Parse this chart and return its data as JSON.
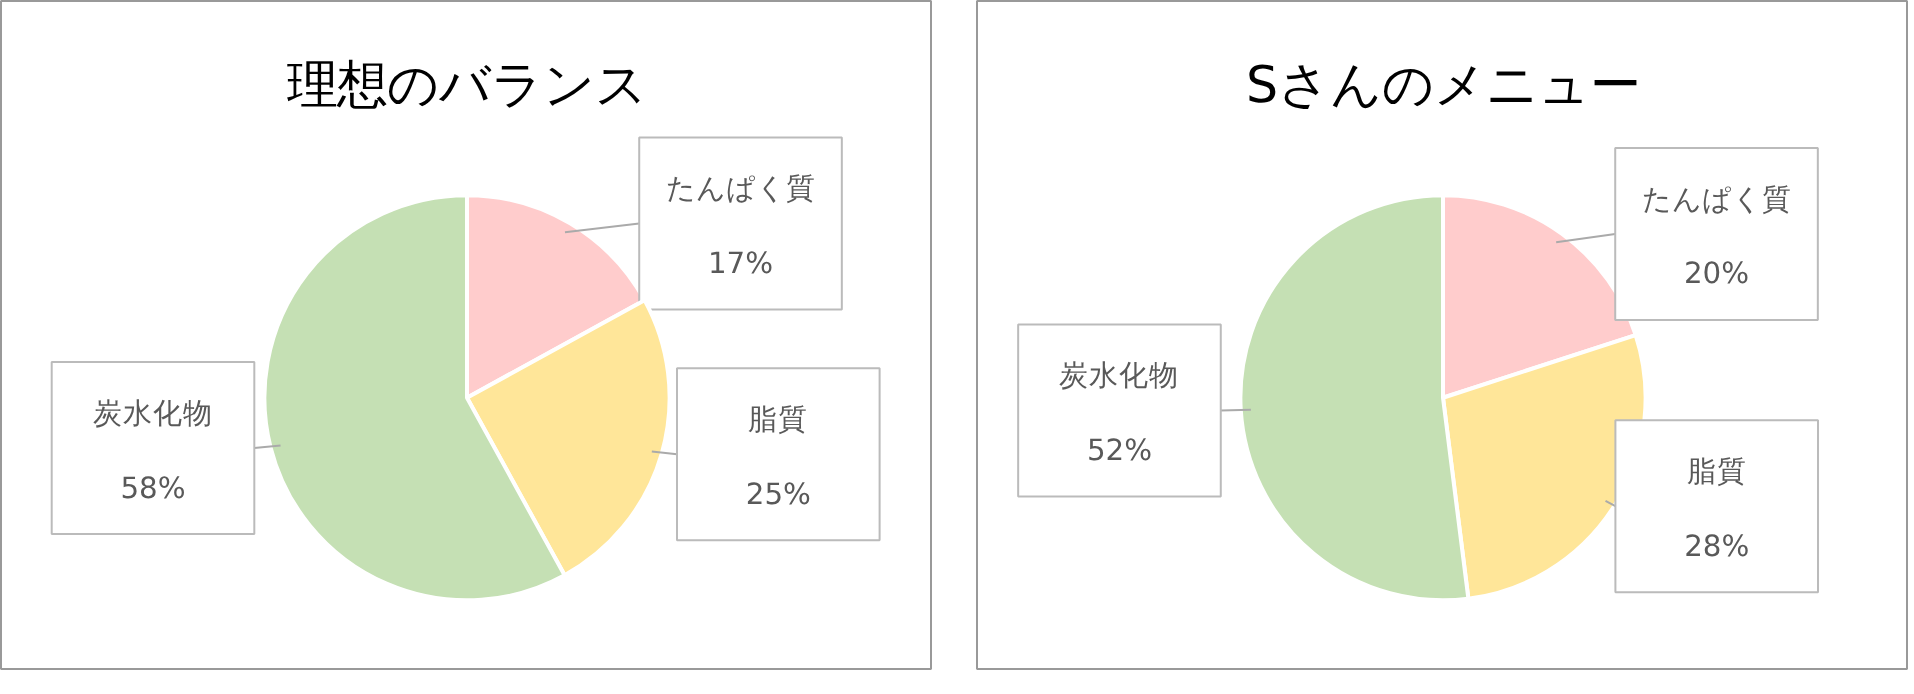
{
  "chart_data": [
    {
      "type": "pie",
      "title": "理想のバランス",
      "categories": [
        "たんぱく質",
        "脂質",
        "炭水化物"
      ],
      "values": [
        17,
        25,
        58
      ],
      "colors": [
        "#ffcccc",
        "#ffe699",
        "#c5e0b4"
      ],
      "value_labels": [
        "17%",
        "25%",
        "58%"
      ]
    },
    {
      "type": "pie",
      "title": "Sさんのメニュー",
      "categories": [
        "たんぱく質",
        "脂質",
        "炭水化物"
      ],
      "values": [
        20,
        28,
        52
      ],
      "colors": [
        "#ffcccc",
        "#ffe699",
        "#c5e0b4"
      ],
      "value_labels": [
        "20%",
        "28%",
        "52%"
      ]
    }
  ]
}
